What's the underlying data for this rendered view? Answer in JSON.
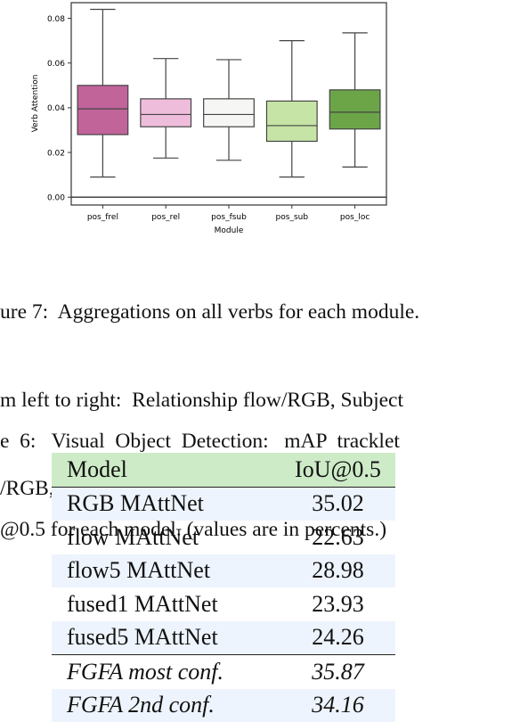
{
  "chart_data": {
    "type": "box",
    "xlabel": "Module",
    "ylabel": "Verb Attention",
    "ylim": [
      -0.0035,
      0.087
    ],
    "yticks": [
      "0.00",
      "0.02",
      "0.04",
      "0.06",
      "0.08"
    ],
    "ytick_values": [
      0,
      0.02,
      0.04,
      0.06,
      0.08
    ],
    "categories": [
      "pos_frel",
      "pos_rel",
      "pos_fsub",
      "pos_sub",
      "pos_loc"
    ],
    "boxes": [
      {
        "whisker_low": 0.009,
        "q1": 0.028,
        "median": 0.0395,
        "q3": 0.05,
        "whisker_high": 0.084,
        "color": "#c0649a"
      },
      {
        "whisker_low": 0.0175,
        "q1": 0.0315,
        "median": 0.037,
        "q3": 0.044,
        "whisker_high": 0.062,
        "color": "#efbddc"
      },
      {
        "whisker_low": 0.0165,
        "q1": 0.0315,
        "median": 0.037,
        "q3": 0.044,
        "whisker_high": 0.0615,
        "color": "#f6f6f4"
      },
      {
        "whisker_low": 0.009,
        "q1": 0.025,
        "median": 0.032,
        "q3": 0.043,
        "whisker_high": 0.07,
        "color": "#c6e4a6"
      },
      {
        "whisker_low": 0.0135,
        "q1": 0.0305,
        "median": 0.038,
        "q3": 0.048,
        "whisker_high": 0.0735,
        "color": "#6ba548"
      }
    ]
  },
  "figure_caption": {
    "lines": [
      "ure 7:  Aggregations on all verbs for each module.",
      "m left to right:  Relationship flow/RGB, Subject",
      "/RGB, Location)"
    ]
  },
  "table_caption": {
    "lines": [
      "e  6:   Visual  Object  Detection:   mAP  tracklet",
      "@0.5 for each model. (values are in percents.)"
    ]
  },
  "table": {
    "header": {
      "model": "Model",
      "iou": "IoU@0.5"
    },
    "rows": [
      {
        "model": "RGB MAttNet",
        "iou": "35.02"
      },
      {
        "model": "flow MAttNet",
        "iou": "22.63"
      },
      {
        "model": "flow5 MAttNet",
        "iou": "28.98"
      },
      {
        "model": "fused1 MAttNet",
        "iou": "23.93"
      },
      {
        "model": "fused5 MAttNet",
        "iou": "24.26"
      }
    ],
    "reference_rows": [
      {
        "model": "FGFA most conf.",
        "iou": "35.87"
      },
      {
        "model": "FGFA 2nd conf.",
        "iou": "34.16"
      }
    ]
  }
}
